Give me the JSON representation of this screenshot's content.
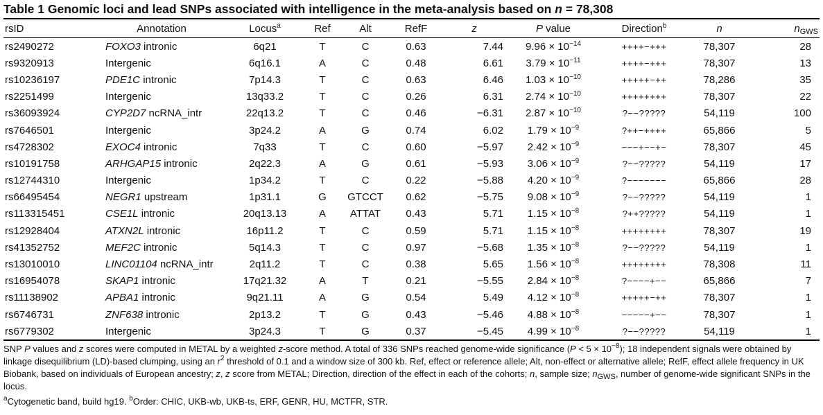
{
  "title": {
    "prefix": "Table 1  Genomic loci and lead SNPs associated with intelligence in the meta-analysis based on ",
    "n_symbol": "n",
    "suffix": " = 78,308"
  },
  "headers": {
    "rsid": "rsID",
    "annotation": "Annotation",
    "locus": "Locus",
    "locus_sup": "a",
    "ref": "Ref",
    "alt": "Alt",
    "reff": "RefF",
    "z": "z",
    "pvalue_p": "P",
    "pvalue_rest": " value",
    "direction": "Direction",
    "direction_sup": "b",
    "n": "n",
    "ngws_n": "n",
    "ngws_sub": "GWS"
  },
  "rows": [
    {
      "rsid": "rs2490272",
      "gene": "FOXO3",
      "ann": " intronic",
      "locus": "6q21",
      "ref": "T",
      "alt": "C",
      "reff": "0.63",
      "z": "7.44",
      "p_mant": "9.96 × 10",
      "p_exp": "−14",
      "dir": "++++−+++",
      "n": "78,307",
      "ngws": "28"
    },
    {
      "rsid": "rs9320913",
      "gene": "",
      "ann": "Intergenic",
      "locus": "6q16.1",
      "ref": "A",
      "alt": "C",
      "reff": "0.48",
      "z": "6.61",
      "p_mant": "3.79 × 10",
      "p_exp": "−11",
      "dir": "++++−+++",
      "n": "78,307",
      "ngws": "13"
    },
    {
      "rsid": "rs10236197",
      "gene": "PDE1C",
      "ann": " intronic",
      "locus": "7p14.3",
      "ref": "T",
      "alt": "C",
      "reff": "0.63",
      "z": "6.46",
      "p_mant": "1.03 × 10",
      "p_exp": "−10",
      "dir": "+++++−++",
      "n": "78,286",
      "ngws": "35"
    },
    {
      "rsid": "rs2251499",
      "gene": "",
      "ann": "Intergenic",
      "locus": "13q33.2",
      "ref": "T",
      "alt": "C",
      "reff": "0.26",
      "z": "6.31",
      "p_mant": "2.74 × 10",
      "p_exp": "−10",
      "dir": "++++++++",
      "n": "78,307",
      "ngws": "22"
    },
    {
      "rsid": "rs36093924",
      "gene": "CYP2D7",
      "ann": " ncRNA_intr",
      "locus": "22q13.2",
      "ref": "T",
      "alt": "C",
      "reff": "0.46",
      "z": "−6.31",
      "p_mant": "2.87 × 10",
      "p_exp": "−10",
      "dir": "?−−?????",
      "n": "54,119",
      "ngws": "100"
    },
    {
      "rsid": "rs7646501",
      "gene": "",
      "ann": "Intergenic",
      "locus": "3p24.2",
      "ref": "A",
      "alt": "G",
      "reff": "0.74",
      "z": "6.02",
      "p_mant": "1.79 × 10",
      "p_exp": "−9",
      "dir": "?++−++++",
      "n": "65,866",
      "ngws": "5"
    },
    {
      "rsid": "rs4728302",
      "gene": "EXOC4",
      "ann": " intronic",
      "locus": "7q33",
      "ref": "T",
      "alt": "C",
      "reff": "0.60",
      "z": "−5.97",
      "p_mant": "2.42 × 10",
      "p_exp": "−9",
      "dir": "−−−+−−+−",
      "n": "78,307",
      "ngws": "45"
    },
    {
      "rsid": "rs10191758",
      "gene": "ARHGAP15",
      "ann": " intronic",
      "locus": "2q22.3",
      "ref": "A",
      "alt": "G",
      "reff": "0.61",
      "z": "−5.93",
      "p_mant": "3.06 × 10",
      "p_exp": "−9",
      "dir": "?−−?????",
      "n": "54,119",
      "ngws": "17"
    },
    {
      "rsid": "rs12744310",
      "gene": "",
      "ann": "Intergenic",
      "locus": "1p34.2",
      "ref": "T",
      "alt": "C",
      "reff": "0.22",
      "z": "−5.88",
      "p_mant": "4.20 × 10",
      "p_exp": "−9",
      "dir": "?−−−−−−−",
      "n": "65,866",
      "ngws": "28"
    },
    {
      "rsid": "rs66495454",
      "gene": "NEGR1",
      "ann": " upstream",
      "locus": "1p31.1",
      "ref": "G",
      "alt": "GTCCT",
      "reff": "0.62",
      "z": "−5.75",
      "p_mant": "9.08 × 10",
      "p_exp": "−9",
      "dir": "?−−?????",
      "n": "54,119",
      "ngws": "1"
    },
    {
      "rsid": "rs113315451",
      "gene": "CSE1L",
      "ann": " intronic",
      "locus": "20q13.13",
      "ref": "A",
      "alt": "ATTAT",
      "reff": "0.43",
      "z": "5.71",
      "p_mant": "1.15 × 10",
      "p_exp": "−8",
      "dir": "?++?????",
      "n": "54,119",
      "ngws": "1"
    },
    {
      "rsid": "rs12928404",
      "gene": "ATXN2L",
      "ann": " intronic",
      "locus": "16p11.2",
      "ref": "T",
      "alt": "C",
      "reff": "0.59",
      "z": "5.71",
      "p_mant": "1.15 × 10",
      "p_exp": "−8",
      "dir": "++++++++",
      "n": "78,307",
      "ngws": "19"
    },
    {
      "rsid": "rs41352752",
      "gene": "MEF2C",
      "ann": " intronic",
      "locus": "5q14.3",
      "ref": "T",
      "alt": "C",
      "reff": "0.97",
      "z": "−5.68",
      "p_mant": "1.35 × 10",
      "p_exp": "−8",
      "dir": "?−−?????",
      "n": "54,119",
      "ngws": "1"
    },
    {
      "rsid": "rs13010010",
      "gene": "LINC01104",
      "ann": " ncRNA_intr",
      "locus": "2q11.2",
      "ref": "T",
      "alt": "C",
      "reff": "0.38",
      "z": "5.65",
      "p_mant": "1.56 × 10",
      "p_exp": "−8",
      "dir": "++++++++",
      "n": "78,308",
      "ngws": "11"
    },
    {
      "rsid": "rs16954078",
      "gene": "SKAP1",
      "ann": " intronic",
      "locus": "17q21.32",
      "ref": "A",
      "alt": "T",
      "reff": "0.21",
      "z": "−5.55",
      "p_mant": "2.84 × 10",
      "p_exp": "−8",
      "dir": "?−−−−+−−",
      "n": "65,866",
      "ngws": "7"
    },
    {
      "rsid": "rs11138902",
      "gene": "APBA1",
      "ann": " intronic",
      "locus": "9q21.11",
      "ref": "A",
      "alt": "G",
      "reff": "0.54",
      "z": "5.49",
      "p_mant": "4.12 × 10",
      "p_exp": "−8",
      "dir": "+++++−++",
      "n": "78,307",
      "ngws": "1"
    },
    {
      "rsid": "rs6746731",
      "gene": "ZNF638",
      "ann": " intronic",
      "locus": "2p13.2",
      "ref": "T",
      "alt": "G",
      "reff": "0.43",
      "z": "−5.46",
      "p_mant": "4.88 × 10",
      "p_exp": "−8",
      "dir": "−−−−−+−−",
      "n": "78,307",
      "ngws": "1"
    },
    {
      "rsid": "rs6779302",
      "gene": "",
      "ann": "Intergenic",
      "locus": "3p24.3",
      "ref": "T",
      "alt": "G",
      "reff": "0.37",
      "z": "−5.45",
      "p_mant": "4.99 × 10",
      "p_exp": "−8",
      "dir": "?−−?????",
      "n": "54,119",
      "ngws": "1"
    }
  ],
  "footnote": {
    "main": [
      {
        "t": "SNP "
      },
      {
        "t": "P",
        "i": true
      },
      {
        "t": " values and "
      },
      {
        "t": "z",
        "i": true
      },
      {
        "t": " scores were computed in METAL by a weighted "
      },
      {
        "t": "z",
        "i": true
      },
      {
        "t": "-score method. A total of 336 SNPs reached genome-wide significance ("
      },
      {
        "t": "P",
        "i": true
      },
      {
        "t": " < 5 × 10"
      },
      {
        "t": "−8",
        "sup": true
      },
      {
        "t": "); 18 independent signals were obtained by linkage disequilibrium (LD)-based clumping, using an "
      },
      {
        "t": "r",
        "i": true
      },
      {
        "t": "2",
        "sup": true
      },
      {
        "t": " threshold of 0.1 and a window size of 300 kb. Ref, effect or reference allele; Alt, non-effect or alternative allele; RefF, effect allele frequency in UK Biobank, based on individuals of European ancestry; "
      },
      {
        "t": "z",
        "i": true
      },
      {
        "t": ", "
      },
      {
        "t": "z",
        "i": true
      },
      {
        "t": " score from METAL; Direction, direction of the effect in each of the cohorts; "
      },
      {
        "t": "n",
        "i": true
      },
      {
        "t": ", sample size; "
      },
      {
        "t": "n",
        "i": true
      },
      {
        "t": "GWS",
        "sub": true
      },
      {
        "t": ", number of genome-wide significant SNPs in the locus."
      }
    ],
    "notes": [
      {
        "t": "a",
        "sup": true
      },
      {
        "t": "Cytogenetic band, build hg19. "
      },
      {
        "t": "b",
        "sup": true
      },
      {
        "t": "Order: CHIC, UKB-wb, UKB-ts, ERF, GENR, HU, MCTFR, STR."
      }
    ]
  }
}
